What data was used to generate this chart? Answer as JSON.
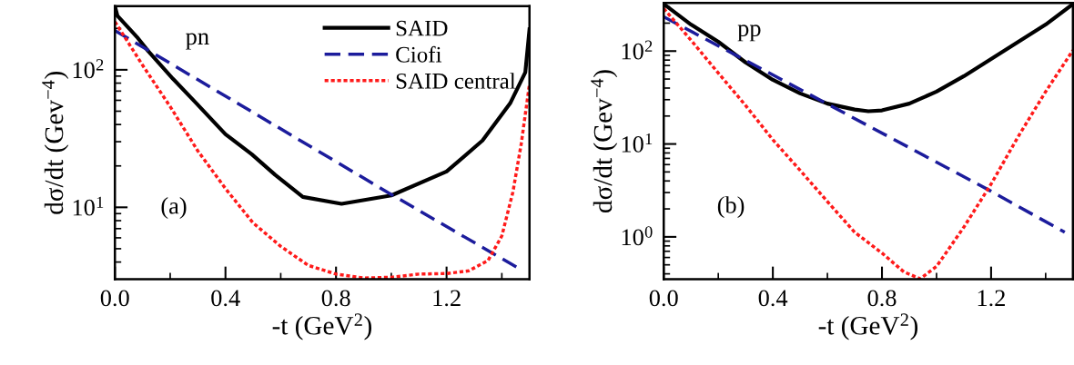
{
  "chart_data": [
    {
      "type": "line",
      "xlabel": "-t (GeV$^{2}$)",
      "ylabel": "dσ/dt (Gev$^{−4}$)",
      "annotations": [
        "pn",
        "(a)"
      ],
      "log": "y",
      "legend": "top right",
      "grid": false,
      "xlim": [
        0,
        1.5
      ],
      "xticks": [
        {
          "value": 0,
          "label": "0.0"
        },
        {
          "value": 0.2,
          "label": null
        },
        0.4,
        {
          "value": 0.6,
          "label": null
        },
        0.8,
        {
          "value": 1.0,
          "label": null
        },
        1.2,
        {
          "value": 1.4,
          "label": null
        }
      ],
      "ylim": [
        3,
        290
      ],
      "yticks": [
        {
          "value": 4,
          "label": null
        },
        {
          "value": 5,
          "label": null
        },
        {
          "value": 6,
          "label": null
        },
        {
          "value": 7,
          "label": null
        },
        {
          "value": 8,
          "label": null
        },
        {
          "value": 9,
          "label": null
        },
        {
          "value": 10,
          "label": "10$^{1}$"
        },
        {
          "value": 20,
          "label": null
        },
        {
          "value": 30,
          "label": null
        },
        {
          "value": 40,
          "label": null
        },
        {
          "value": 50,
          "label": null
        },
        {
          "value": 60,
          "label": null
        },
        {
          "value": 70,
          "label": null
        },
        {
          "value": 80,
          "label": null
        },
        {
          "value": 90,
          "label": null
        },
        {
          "value": 100,
          "label": "10$^{2}$"
        },
        {
          "value": 200,
          "label": null
        }
      ],
      "series": [
        {
          "name": "SAID",
          "color": "#000000",
          "line_style": "solid",
          "x": [
            0,
            0.009,
            0.083,
            0.12,
            0.21,
            0.295,
            0.4,
            0.495,
            0.58,
            0.68,
            0.82,
            1.0,
            1.2,
            1.33,
            1.43,
            1.485,
            1.5
          ],
          "values": [
            290,
            247,
            170,
            137,
            86,
            57,
            34,
            24.3,
            17.2,
            11.9,
            10.6,
            12.2,
            18.2,
            30.6,
            57,
            96,
            197
          ]
        },
        {
          "name": "Ciofi",
          "color": "#1c1c9c",
          "line_style": "dashed",
          "x": [
            0,
            1.0,
            1.465
          ],
          "values": [
            193,
            12.4,
            3.56
          ]
        },
        {
          "name": "SAID central",
          "color": "#ff1a1a",
          "line_style": "dotted",
          "x": [
            0,
            0.1,
            0.2,
            0.3,
            0.4,
            0.5,
            0.6,
            0.7,
            0.8,
            0.9,
            1.0,
            1.1,
            1.2,
            1.28,
            1.35,
            1.4,
            1.44,
            1.47,
            1.5
          ],
          "values": [
            224,
            108,
            54,
            25.7,
            13.7,
            7.7,
            5.2,
            3.78,
            3.27,
            3.06,
            3.1,
            3.27,
            3.3,
            3.45,
            4.1,
            6.2,
            12.9,
            28.8,
            78.7
          ]
        }
      ]
    },
    {
      "type": "line",
      "xlabel": "-t (GeV$^{2}$)",
      "ylabel": "dσ/dt (Gev$^{−4}$)",
      "annotations": [
        "pp",
        "(b)"
      ],
      "log": "y",
      "legend": false,
      "grid": false,
      "xlim": [
        0,
        1.5
      ],
      "xticks": [
        {
          "value": 0,
          "label": "0.0"
        },
        {
          "value": 0.2,
          "label": null
        },
        0.4,
        {
          "value": 0.6,
          "label": null
        },
        0.8,
        {
          "value": 1.0,
          "label": null
        },
        1.2,
        {
          "value": 1.4,
          "label": null
        }
      ],
      "ylim": [
        0.35,
        330
      ],
      "yticks": [
        {
          "value": 0.4,
          "label": null
        },
        {
          "value": 0.5,
          "label": null
        },
        {
          "value": 0.6,
          "label": null
        },
        {
          "value": 0.7,
          "label": null
        },
        {
          "value": 0.8,
          "label": null
        },
        {
          "value": 0.9,
          "label": null
        },
        {
          "value": 1,
          "label": "10$^{0}$"
        },
        {
          "value": 2,
          "label": null
        },
        {
          "value": 3,
          "label": null
        },
        {
          "value": 4,
          "label": null
        },
        {
          "value": 5,
          "label": null
        },
        {
          "value": 6,
          "label": null
        },
        {
          "value": 7,
          "label": null
        },
        {
          "value": 8,
          "label": null
        },
        {
          "value": 9,
          "label": null
        },
        {
          "value": 10,
          "label": "10$^{1}$"
        },
        {
          "value": 20,
          "label": null
        },
        {
          "value": 30,
          "label": null
        },
        {
          "value": 40,
          "label": null
        },
        {
          "value": 50,
          "label": null
        },
        {
          "value": 60,
          "label": null
        },
        {
          "value": 70,
          "label": null
        },
        {
          "value": 80,
          "label": null
        },
        {
          "value": 90,
          "label": null
        },
        {
          "value": 100,
          "label": "10$^{2}$"
        },
        {
          "value": 200,
          "label": null
        },
        {
          "value": 300,
          "label": null
        }
      ],
      "series": [
        {
          "color": "#000000",
          "line_style": "solid",
          "x": [
            0,
            0.1,
            0.2,
            0.3,
            0.4,
            0.5,
            0.6,
            0.7,
            0.75,
            0.8,
            0.9,
            1.0,
            1.1,
            1.2,
            1.3,
            1.4,
            1.5
          ],
          "values": [
            321,
            193,
            126,
            75.5,
            49,
            35,
            27.2,
            23.5,
            22.5,
            23,
            27.2,
            36.6,
            53.7,
            82,
            126,
            193,
            321
          ]
        },
        {
          "color": "#1c1c9c",
          "line_style": "dashed",
          "x": [
            0,
            1.2,
            1.47
          ],
          "values": [
            234,
            3.1,
            1.12
          ]
        },
        {
          "color": "#ff1a1a",
          "line_style": "dotted",
          "x": [
            0,
            0.1,
            0.2,
            0.3,
            0.4,
            0.5,
            0.6,
            0.7,
            0.8,
            0.88,
            0.94,
            1.0,
            1.1,
            1.2,
            1.3,
            1.4,
            1.5
          ],
          "values": [
            287,
            131,
            58,
            26,
            11.1,
            5.2,
            2.4,
            1.12,
            0.67,
            0.42,
            0.354,
            0.48,
            1.27,
            3.7,
            12.1,
            36.6,
            102
          ]
        }
      ]
    }
  ]
}
